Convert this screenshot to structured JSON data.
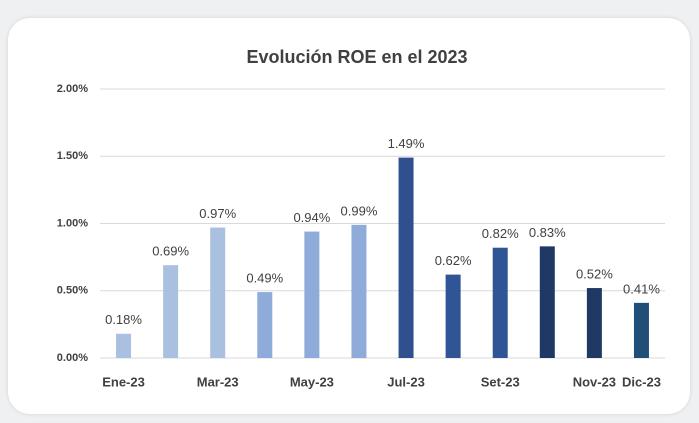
{
  "chart_data": {
    "type": "bar",
    "title": "Evolución ROE en el 2023",
    "categories": [
      "Ene-23",
      null,
      "Mar-23",
      null,
      "May-23",
      null,
      "Jul-23",
      null,
      "Set-23",
      null,
      "Nov-23",
      "Dic-23"
    ],
    "values": [
      0.18,
      0.69,
      0.97,
      0.49,
      0.94,
      0.99,
      1.49,
      0.62,
      0.82,
      0.83,
      0.52,
      0.41
    ],
    "value_labels": [
      "0.18%",
      "0.69%",
      "0.97%",
      "0.49%",
      "0.94%",
      "0.99%",
      "1.49%",
      "0.62%",
      "0.82%",
      "0.83%",
      "0.52%",
      "0.41%"
    ],
    "colors": [
      "#aac0e1",
      "#aac0e1",
      "#aac0e1",
      "#8eabd9",
      "#8eabd9",
      "#8eabd9",
      "#2f4f8f",
      "#2f5597",
      "#2f5597",
      "#1f3864",
      "#1f3864",
      "#1f4e79"
    ],
    "ylim": [
      0,
      2
    ],
    "yticks": [
      {
        "value": 0,
        "label": "0.00%"
      },
      {
        "value": 0.5,
        "label": "0.50%"
      },
      {
        "value": 1,
        "label": "1.00%"
      },
      {
        "value": 1.5,
        "label": "1.50%"
      },
      {
        "value": 2,
        "label": "2.00%"
      }
    ],
    "grid": true
  }
}
